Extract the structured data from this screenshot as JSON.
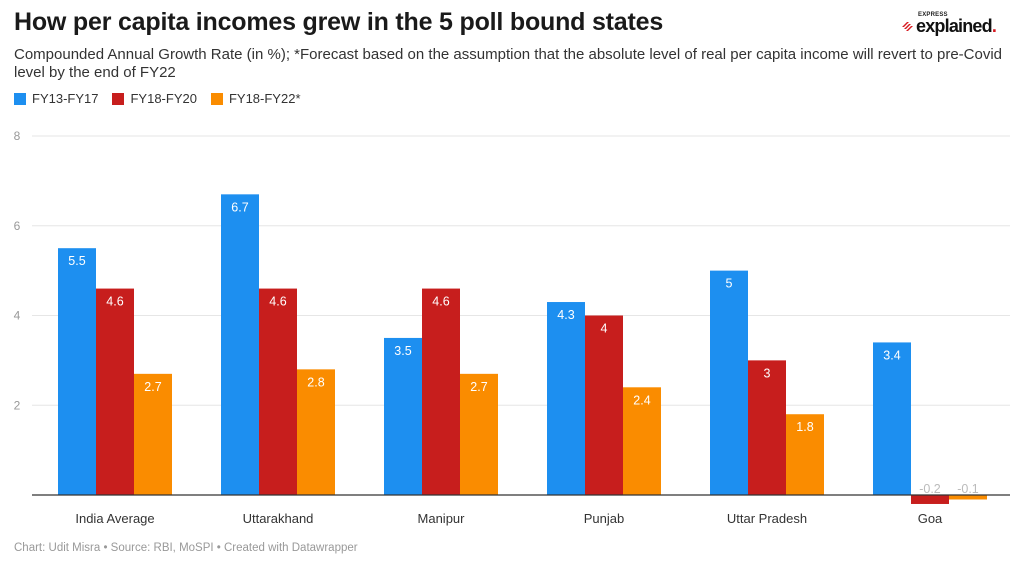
{
  "header": {
    "title": "How per capita incomes grew in the 5 poll bound states",
    "subtitle": "Compounded Annual Growth Rate (in %); *Forecast based on the assumption that the absolute level of real per capita income will revert to pre-Covid level by the end of FY22",
    "logo_kicker": "EXPRESS",
    "logo_word": "explained",
    "logo_dot": "."
  },
  "footer": {
    "credit": "Chart: Udit Misra • Source: RBI, MoSPI • Created with Datawrapper"
  },
  "chart_data": {
    "type": "bar",
    "title": "How per capita incomes grew in the 5 poll bound states",
    "subtitle": "Compounded Annual Growth Rate (in %); *Forecast based on the assumption that the absolute level of real per capita income will revert to pre-Covid level by the end of FY22",
    "xlabel": "",
    "ylabel": "",
    "ylim": [
      0,
      8
    ],
    "yticks": [
      2,
      4,
      6,
      8
    ],
    "grid": true,
    "legend_position": "top-left",
    "categories": [
      "India Average",
      "Uttarakhand",
      "Manipur",
      "Punjab",
      "Uttar Pradesh",
      "Goa"
    ],
    "series": [
      {
        "name": "FY13-FY17",
        "color": "#1d8ff0",
        "values": [
          5.5,
          6.7,
          3.5,
          4.3,
          5,
          3.4
        ]
      },
      {
        "name": "FY18-FY20",
        "color": "#c71e1d",
        "values": [
          4.6,
          4.6,
          4.6,
          4,
          3,
          -0.2
        ]
      },
      {
        "name": "FY18-FY22*",
        "color": "#fa8c00",
        "values": [
          2.7,
          2.8,
          2.7,
          2.4,
          1.8,
          -0.1
        ]
      }
    ]
  }
}
